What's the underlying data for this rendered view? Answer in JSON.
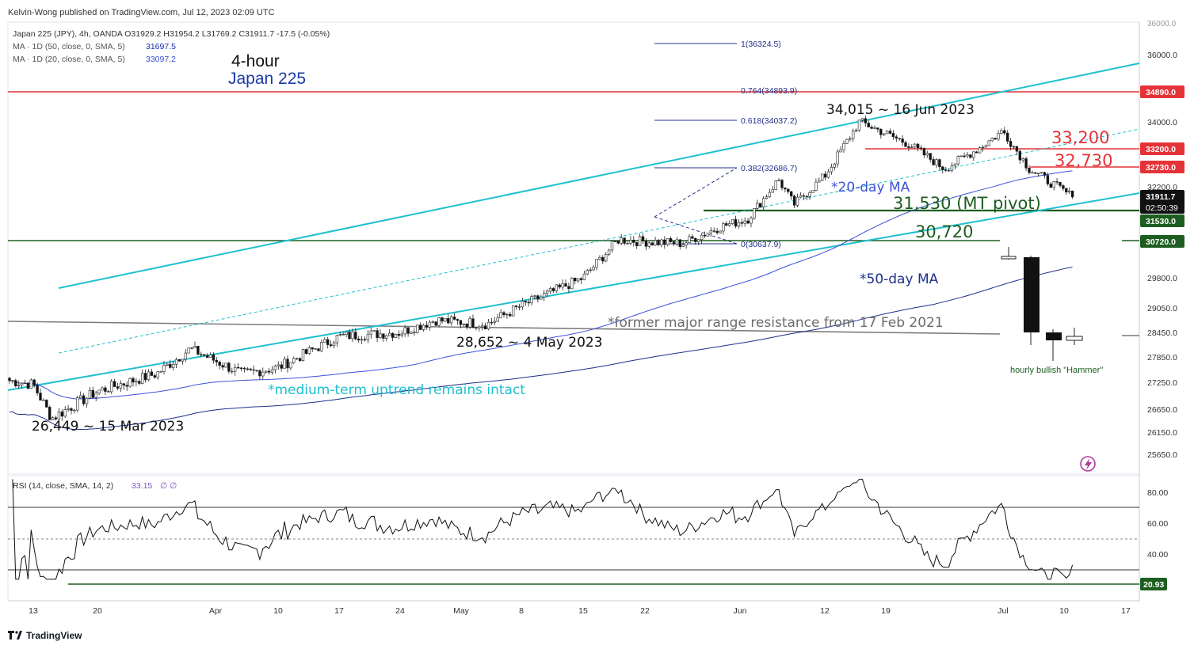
{
  "header": {
    "publisher": "Kelvin-Wong published on TradingView.com, Jul 12, 2023 02:09 UTC",
    "symbol_line": "Japan 225 (JPY), 4h, OANDA  O31929.2  H31954.2  L31769.2  C31911.7  -17.5 (-0.05%)",
    "ma50_label": "MA · 1D (50, close, 0, SMA, 5)",
    "ma50_value": "31697.5",
    "ma20_label": "MA · 1D (20, close, 0, SMA, 5)",
    "ma20_value": "33097.2"
  },
  "titles": {
    "timeframe": "4-hour",
    "instrument": "Japan 225"
  },
  "annotations": {
    "high": "34,015 ~ 16 Jun 2023",
    "low_may": "28,652 ~ 4 May 2023",
    "low_mar": "26,449 ~ 15 Mar 2023",
    "res1": "33,200",
    "res2": "32,730",
    "pivot": "31,530 (MT pivot)",
    "support": "30,720",
    "ma20": "*20-day MA",
    "ma50": "*50-day MA",
    "range": "*former major range resistance from 17 Feb 2021",
    "uptrend": "*medium-term uptrend remains intact",
    "hammer": "hourly bullish \"Hammer\""
  },
  "fib": {
    "f1": "1(36324.5)",
    "f764": "0.764(34893.9)",
    "f618": "0.618(34037.2)",
    "f382": "0.382(32686.7)",
    "f0": "0(30637.9)"
  },
  "price_axis": {
    "ticks": [
      "36000.0",
      "34000.0",
      "32200.0",
      "29800.0",
      "29050.0",
      "28450.0",
      "27850.0",
      "27250.0",
      "26650.0",
      "26150.0",
      "25650.0"
    ],
    "top_clipped": "36000.0",
    "badges": {
      "r34890": "34890.0",
      "r33200": "33200.0",
      "r32730": "32730.0",
      "last": "31911.7",
      "countdown": "02:50:39",
      "p31530": "31530.0",
      "s30720": "30720.0"
    }
  },
  "rsi": {
    "label": "RSI (14, close, SMA, 14, 2)",
    "value": "33.15",
    "na": "∅  ∅",
    "ticks": [
      "80.00",
      "60.00",
      "40.00"
    ],
    "badge": "20.93"
  },
  "time_axis": [
    "13",
    "20",
    "Apr",
    "10",
    "17",
    "24",
    "May",
    "8",
    "15",
    "22",
    "Jun",
    "12",
    "19",
    "Jul",
    "10",
    "17"
  ],
  "footer": {
    "brand": "TradingView"
  },
  "colors": {
    "red": "#e53238",
    "teal": "#1fc0cf",
    "darkgreen": "#1d5e20",
    "navy": "#1b2fb0",
    "fibblue": "#24318c",
    "gray": "#7a7a7a",
    "rsi_purple": "#7e57c2"
  },
  "chart_data": {
    "type": "candlestick",
    "timeframe": "4h",
    "ohlc_last": {
      "open": 31929.2,
      "high": 31954.2,
      "low": 31769.2,
      "close": 31911.7
    },
    "price_path": [
      [
        "Mar 13",
        27200
      ],
      [
        "Mar 15",
        26449
      ],
      [
        "Mar 20",
        27050
      ],
      [
        "Mar 27",
        27450
      ],
      [
        "Mar 31",
        28050
      ],
      [
        "Apr 6",
        27450
      ],
      [
        "Apr 10",
        27600
      ],
      [
        "Apr 17",
        28350
      ],
      [
        "Apr 24",
        28450
      ],
      [
        "Apr 28",
        28750
      ],
      [
        "May 4",
        28652
      ],
      [
        "May 8",
        29100
      ],
      [
        "May 15",
        29800
      ],
      [
        "May 19",
        30750
      ],
      [
        "May 22",
        30700
      ],
      [
        "May 26",
        30650
      ],
      [
        "May 30",
        31100
      ],
      [
        "Jun 2",
        31300
      ],
      [
        "Jun 6",
        32400
      ],
      [
        "Jun 8",
        31700
      ],
      [
        "Jun 12",
        32500
      ],
      [
        "Jun 16",
        34015
      ],
      [
        "Jun 22",
        33350
      ],
      [
        "Jun 26",
        32700
      ],
      [
        "Jun 30",
        33250
      ],
      [
        "Jul 3",
        33750
      ],
      [
        "Jul 6",
        32700
      ],
      [
        "Jul 11",
        31911.7
      ]
    ],
    "moving_averages": [
      {
        "name": "MA · 1D (50, close, 0, SMA, 5)",
        "last": 31697.5
      },
      {
        "name": "MA · 1D (20, close, 0, SMA, 5)",
        "last": 33097.2
      }
    ],
    "horizontal_levels": [
      {
        "label": "34890.0",
        "value": 34890.0
      },
      {
        "label": "33,200",
        "value": 33200.0
      },
      {
        "label": "32,730",
        "value": 32730.0
      },
      {
        "label": "31,530 (MT pivot)",
        "value": 31530.0
      },
      {
        "label": "30,720",
        "value": 30720.0
      }
    ],
    "fibonacci": [
      {
        "level": "1",
        "value": 36324.5
      },
      {
        "level": "0.764",
        "value": 34893.9
      },
      {
        "level": "0.618",
        "value": 34037.2
      },
      {
        "level": "0.382",
        "value": 32686.7
      },
      {
        "level": "0",
        "value": 30637.9
      }
    ],
    "rsi": {
      "period": 14,
      "last": 33.15,
      "levels": [
        70,
        50,
        30
      ],
      "marked_low": 20.93,
      "ylim": [
        10,
        90
      ]
    },
    "x_ticks": [
      "13",
      "20",
      "Apr",
      "10",
      "17",
      "24",
      "May",
      "8",
      "15",
      "22",
      "Jun",
      "12",
      "19",
      "Jul",
      "10",
      "17"
    ],
    "y_ticks": [
      36000,
      34000,
      32200,
      29800,
      29050,
      28450,
      27850,
      27250,
      26650,
      26150,
      25650
    ]
  }
}
